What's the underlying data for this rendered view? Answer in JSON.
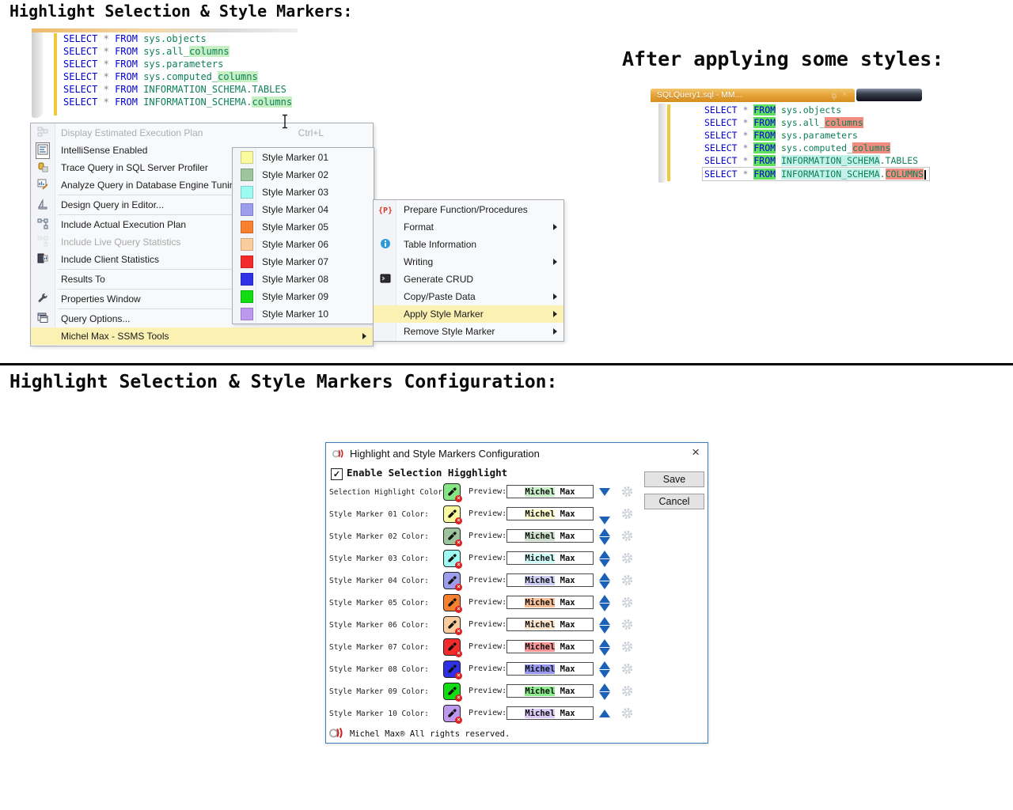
{
  "page": {
    "title1": "Highlight Selection & Style Markers:",
    "title2": "After applying some styles:",
    "title3": "Highlight Selection & Style Markers Configuration:"
  },
  "colors": {
    "keyword_blue": "#0000D0",
    "system_object_green": "#0E8055",
    "operator_gray": "#7F7F98",
    "selection_highlight_bg": "#C6EFC4",
    "marker_green_bg": "#5FDE5F",
    "marker_red_bg": "#F28B80",
    "marker_cyan_bg": "#C2F1EA",
    "menu_highlight_yellow": "#FBF1B3",
    "change_bar_yellow": "#EFC93C",
    "dialog_border_blue": "#3E7CB8",
    "arrow_blue": "#1B61B7"
  },
  "editor1": {
    "lines": [
      [
        [
          "kw",
          "SELECT"
        ],
        [
          "pl",
          " "
        ],
        [
          "op",
          "*"
        ],
        [
          "pl",
          " "
        ],
        [
          "kw",
          "FROM"
        ],
        [
          "pl",
          " "
        ],
        [
          "sys",
          "sys.objects"
        ]
      ],
      [
        [
          "kw",
          "SELECT"
        ],
        [
          "pl",
          " "
        ],
        [
          "op",
          "*"
        ],
        [
          "pl",
          " "
        ],
        [
          "kw",
          "FROM"
        ],
        [
          "pl",
          " "
        ],
        [
          "sys",
          "sys.all_"
        ],
        [
          "sys",
          "columns",
          "sel"
        ]
      ],
      [
        [
          "kw",
          "SELECT"
        ],
        [
          "pl",
          " "
        ],
        [
          "op",
          "*"
        ],
        [
          "pl",
          " "
        ],
        [
          "kw",
          "FROM"
        ],
        [
          "pl",
          " "
        ],
        [
          "sys",
          "sys.parameters"
        ]
      ],
      [
        [
          "kw",
          "SELECT"
        ],
        [
          "pl",
          " "
        ],
        [
          "op",
          "*"
        ],
        [
          "pl",
          " "
        ],
        [
          "kw",
          "FROM"
        ],
        [
          "pl",
          " "
        ],
        [
          "sys",
          "sys.computed_"
        ],
        [
          "sys",
          "columns",
          "sel"
        ]
      ],
      [
        [
          "kw",
          "SELECT"
        ],
        [
          "pl",
          " "
        ],
        [
          "op",
          "*"
        ],
        [
          "pl",
          " "
        ],
        [
          "kw",
          "FROM"
        ],
        [
          "pl",
          " "
        ],
        [
          "sys",
          "INFORMATION_SCHEMA.TABLES"
        ]
      ],
      [
        [
          "kw",
          "SELECT"
        ],
        [
          "pl",
          " "
        ],
        [
          "op",
          "*"
        ],
        [
          "pl",
          " "
        ],
        [
          "kw",
          "FROM"
        ],
        [
          "pl",
          " "
        ],
        [
          "sys",
          "INFORMATION_SCHEMA."
        ],
        [
          "sys",
          "columns",
          "sel"
        ]
      ]
    ]
  },
  "editor2": {
    "tab_title": "SQLQuery1.sql - MM...",
    "lines": [
      [
        [
          "kw",
          "SELECT"
        ],
        [
          "pl",
          " "
        ],
        [
          "op",
          "*"
        ],
        [
          "pl",
          " "
        ],
        [
          "kw",
          "FROM",
          "g"
        ],
        [
          "pl",
          " "
        ],
        [
          "sys",
          "sys.objects"
        ]
      ],
      [
        [
          "kw",
          "SELECT"
        ],
        [
          "pl",
          " "
        ],
        [
          "op",
          "*"
        ],
        [
          "pl",
          " "
        ],
        [
          "kw",
          "FROM",
          "g"
        ],
        [
          "pl",
          " "
        ],
        [
          "sys",
          "sys.all_"
        ],
        [
          "sys",
          "columns",
          "r"
        ]
      ],
      [
        [
          "kw",
          "SELECT"
        ],
        [
          "pl",
          " "
        ],
        [
          "op",
          "*"
        ],
        [
          "pl",
          " "
        ],
        [
          "kw",
          "FROM",
          "g"
        ],
        [
          "pl",
          " "
        ],
        [
          "sys",
          "sys.parameters"
        ]
      ],
      [
        [
          "kw",
          "SELECT"
        ],
        [
          "pl",
          " "
        ],
        [
          "op",
          "*"
        ],
        [
          "pl",
          " "
        ],
        [
          "kw",
          "FROM",
          "g"
        ],
        [
          "pl",
          " "
        ],
        [
          "sys",
          "sys.computed_"
        ],
        [
          "sys",
          "columns",
          "r"
        ]
      ],
      [
        [
          "kw",
          "SELECT"
        ],
        [
          "pl",
          " "
        ],
        [
          "op",
          "*"
        ],
        [
          "pl",
          " "
        ],
        [
          "kw",
          "FROM",
          "g"
        ],
        [
          "pl",
          " "
        ],
        [
          "sys",
          "INFORMATION_SCHEMA",
          "c"
        ],
        [
          "sys",
          ".TABLES"
        ]
      ],
      [
        [
          "kw",
          "SELECT"
        ],
        [
          "pl",
          " "
        ],
        [
          "op",
          "*"
        ],
        [
          "pl",
          " "
        ],
        [
          "kw",
          "FROM",
          "g"
        ],
        [
          "pl",
          " "
        ],
        [
          "sys",
          "INFORMATION_SCHEMA",
          "c"
        ],
        [
          "sys",
          "."
        ],
        [
          "sys",
          "COLUMNS",
          "r"
        ]
      ]
    ]
  },
  "context_menu": {
    "items": [
      {
        "label": "Display Estimated Execution Plan",
        "shortcut": "Ctrl+L",
        "icon": "execution-plan",
        "state": "faded"
      },
      {
        "label": "IntelliSense Enabled",
        "icon": "intellisense",
        "boxed": true
      },
      {
        "label": "Trace Query in SQL Server Profiler",
        "icon": "profiler"
      },
      {
        "label": "Analyze Query in Database Engine Tuning",
        "icon": "tuning"
      },
      {
        "sep": true
      },
      {
        "label": "Design Query in Editor...",
        "icon": "design"
      },
      {
        "sep": true
      },
      {
        "label": "Include Actual Execution Plan",
        "icon": "actual-plan"
      },
      {
        "label": "Include Live Query Statistics",
        "icon": "live-stats",
        "state": "disabled"
      },
      {
        "label": "Include Client Statistics",
        "icon": "client-stats"
      },
      {
        "sep": true
      },
      {
        "label": "Results To"
      },
      {
        "sep": true
      },
      {
        "label": "Properties Window",
        "icon": "wrench"
      },
      {
        "sep": true
      },
      {
        "label": "Query Options...",
        "icon": "query-options"
      },
      {
        "label": "Michel Max - SSMS Tools",
        "highlighted": true,
        "submenu": true
      }
    ]
  },
  "style_marker_submenu": {
    "items": [
      {
        "label": "Style Marker 01",
        "color": "#FAFA9E"
      },
      {
        "label": "Style Marker 02",
        "color": "#9DC49D"
      },
      {
        "label": "Style Marker 03",
        "color": "#9EFBF3"
      },
      {
        "label": "Style Marker 04",
        "color": "#9D9DEE"
      },
      {
        "label": "Style Marker 05",
        "color": "#F8812F"
      },
      {
        "label": "Style Marker 06",
        "color": "#FBCD9E"
      },
      {
        "label": "Style Marker 07",
        "color": "#F32B2B"
      },
      {
        "label": "Style Marker 08",
        "color": "#3030E6"
      },
      {
        "label": "Style Marker 09",
        "color": "#12DC12"
      },
      {
        "label": "Style Marker 10",
        "color": "#BE97EE"
      }
    ]
  },
  "tools_submenu": {
    "items": [
      {
        "label": "Prepare Function/Procedures",
        "icon": "prepare-fp"
      },
      {
        "label": "Format",
        "submenu": true
      },
      {
        "label": "Table Information",
        "icon": "info"
      },
      {
        "label": "Writing",
        "submenu": true
      },
      {
        "label": "Generate CRUD",
        "icon": "crud"
      },
      {
        "label": "Copy/Paste Data",
        "submenu": true
      },
      {
        "label": "Apply Style Marker",
        "submenu": true,
        "highlighted": true
      },
      {
        "label": "Remove Style Marker",
        "submenu": true
      }
    ]
  },
  "dialog": {
    "title": "Highlight and Style Markers Configuration",
    "close_label": "×",
    "checkbox_label": "Enable Selection Higghlight",
    "checkbox_checked": true,
    "check_glyph": "✓",
    "save_label": "Save",
    "cancel_label": "Cancel",
    "preview_label": "Preview:",
    "preview_word": "Michel",
    "preview_rest": " Max",
    "rows": [
      {
        "label": "Selection Highlight Color:",
        "color": "#86E686",
        "preview_bg": "#C9EFC9",
        "arrows": [
          "down"
        ]
      },
      {
        "label": "Style Marker 01 Color:",
        "color": "#FAFA9E",
        "preview_bg": "#FCFCCE",
        "arrows": [
          "down"
        ]
      },
      {
        "label": "Style Marker 02 Color:",
        "color": "#9DC49D",
        "preview_bg": "#CEE1CE",
        "arrows": [
          "up",
          "down"
        ]
      },
      {
        "label": "Style Marker 03 Color:",
        "color": "#9EFBF3",
        "preview_bg": "#CEFDF9",
        "arrows": [
          "up",
          "down"
        ]
      },
      {
        "label": "Style Marker 04 Color:",
        "color": "#9D9DEE",
        "preview_bg": "#CECEF6",
        "arrows": [
          "up",
          "down"
        ]
      },
      {
        "label": "Style Marker 05 Color:",
        "color": "#F8812F",
        "preview_bg": "#FBC097",
        "arrows": [
          "up",
          "down"
        ]
      },
      {
        "label": "Style Marker 06 Color:",
        "color": "#FBCD9E",
        "preview_bg": "#FDE6CE",
        "arrows": [
          "up",
          "down"
        ]
      },
      {
        "label": "Style Marker 07 Color:",
        "color": "#F32B2B",
        "preview_bg": "#F99595",
        "arrows": [
          "up",
          "down"
        ]
      },
      {
        "label": "Style Marker 08 Color:",
        "color": "#3030E6",
        "preview_bg": "#9797F2",
        "arrows": [
          "up",
          "down"
        ]
      },
      {
        "label": "Style Marker 09 Color:",
        "color": "#12DC12",
        "preview_bg": "#88ED88",
        "arrows": [
          "up",
          "down"
        ]
      },
      {
        "label": "Style Marker 10 Color:",
        "color": "#BE97EE",
        "preview_bg": "#DECBF6",
        "arrows": [
          "up"
        ]
      }
    ],
    "footer": "Michel Max® All rights reserved."
  }
}
